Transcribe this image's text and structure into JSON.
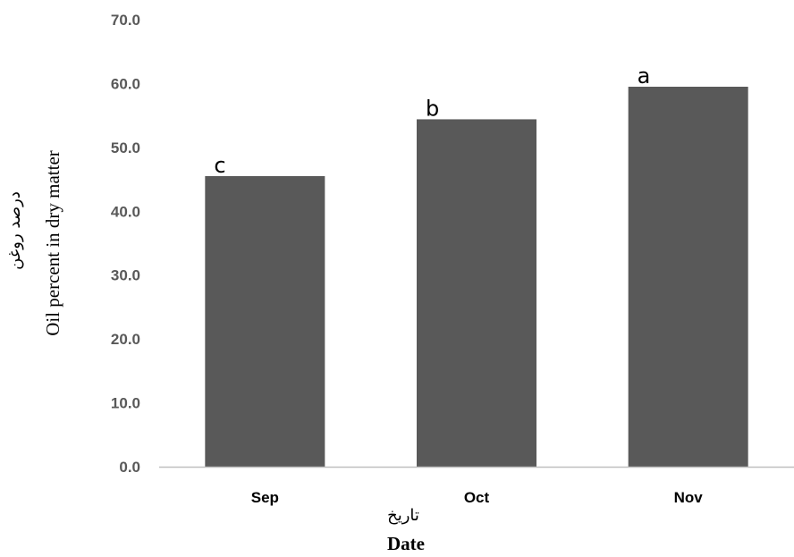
{
  "chart_data": {
    "type": "bar",
    "categories": [
      "Sep",
      "Oct",
      "Nov"
    ],
    "values": [
      45.5,
      54.4,
      59.5
    ],
    "significance_letters": [
      "c",
      "b",
      "a"
    ],
    "xlabel": "Date",
    "xlabel_fa": "تاريخ",
    "ylabel": "Oil percent in dry matter",
    "ylabel_fa": "درصد روغن",
    "ylim": [
      0,
      70
    ],
    "yticks": [
      "0.0",
      "10.0",
      "20.0",
      "30.0",
      "40.0",
      "50.0",
      "60.0",
      "70.0"
    ],
    "grid": false,
    "bar_color": "#595959",
    "axis_color": "#bfbfbf"
  }
}
